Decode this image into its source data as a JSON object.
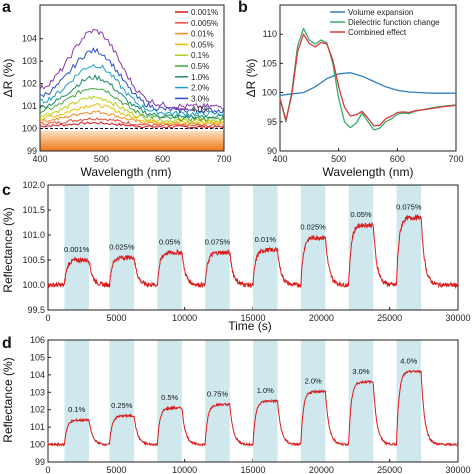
{
  "chart_data": [
    {
      "panel": "a",
      "type": "line",
      "xlabel": "Wavelength (nm)",
      "ylabel": "ΔR (%)",
      "xlim": [
        400,
        700
      ],
      "ylim": [
        99,
        105.5
      ],
      "xticks": [
        "400",
        "500",
        "600",
        "700"
      ],
      "yticks": [
        "99",
        "100",
        "101",
        "102",
        "103",
        "104"
      ],
      "legend_position": "top-right",
      "series": [
        {
          "name": "0.001%",
          "color": "#d81b23",
          "peak": 100.25,
          "tail": 100.05
        },
        {
          "name": "0.005%",
          "color": "#e8483a",
          "peak": 100.45,
          "tail": 100.1
        },
        {
          "name": "0.01%",
          "color": "#f08a24",
          "peak": 100.75,
          "tail": 100.15
        },
        {
          "name": "0.05%",
          "color": "#e6c000",
          "peak": 101.05,
          "tail": 100.2
        },
        {
          "name": "0.1%",
          "color": "#b5cf1a",
          "peak": 101.4,
          "tail": 100.25
        },
        {
          "name": "0.5%",
          "color": "#3ea63a",
          "peak": 101.85,
          "tail": 100.3
        },
        {
          "name": "1.0%",
          "color": "#1a8a6e",
          "peak": 102.3,
          "tail": 100.35
        },
        {
          "name": "2.0%",
          "color": "#1aa0c4",
          "peak": 102.85,
          "tail": 100.45
        },
        {
          "name": "3.0%",
          "color": "#2a50c8",
          "peak": 103.5,
          "tail": 100.55
        },
        {
          "name": "4.0%",
          "color": "#8a3aa8",
          "peak": 104.4,
          "tail": 100.65
        }
      ],
      "reference_line": 100
    },
    {
      "panel": "b",
      "type": "line",
      "xlabel": "Wavelength (nm)",
      "ylabel": "ΔR (%)",
      "xlim": [
        400,
        700
      ],
      "ylim": [
        90,
        115
      ],
      "xticks": [
        "400",
        "500",
        "600",
        "700"
      ],
      "yticks": [
        "90",
        "95",
        "100",
        "105",
        "110"
      ],
      "legend_position": "top-right",
      "series": [
        {
          "name": "Volume expansion",
          "color": "#2f7fc0",
          "x": [
            400,
            420,
            440,
            460,
            480,
            500,
            520,
            540,
            560,
            580,
            600,
            620,
            640,
            660,
            680,
            700
          ],
          "y": [
            99.5,
            99.8,
            100.0,
            101.0,
            102.4,
            103.2,
            103.4,
            102.8,
            101.9,
            101.0,
            100.4,
            100.1,
            100.0,
            99.9,
            99.9,
            99.9
          ]
        },
        {
          "name": "Dielectric function change",
          "color": "#3aaa6a",
          "x": [
            400,
            410,
            420,
            430,
            440,
            450,
            460,
            470,
            480,
            490,
            500,
            510,
            520,
            530,
            540,
            550,
            560,
            570,
            580,
            590,
            600,
            610,
            620,
            630,
            640,
            660,
            680,
            700
          ],
          "y": [
            99.0,
            95.0,
            100.0,
            108.0,
            111.0,
            109.0,
            108.3,
            109.0,
            108.5,
            105.0,
            99.0,
            95.0,
            94.0,
            94.8,
            96.5,
            95.0,
            93.6,
            93.9,
            95.0,
            95.5,
            96.3,
            96.5,
            96.4,
            96.8,
            97.0,
            97.4,
            97.7,
            97.9
          ]
        },
        {
          "name": "Combined effect",
          "color": "#d63a3a",
          "x": [
            400,
            410,
            420,
            430,
            440,
            450,
            460,
            470,
            480,
            490,
            500,
            510,
            520,
            530,
            540,
            550,
            560,
            570,
            580,
            590,
            600,
            610,
            620,
            630,
            640,
            660,
            680,
            700
          ],
          "y": [
            99.0,
            95.3,
            99.5,
            107.0,
            110.0,
            108.4,
            107.8,
            108.6,
            108.3,
            105.6,
            101.0,
            97.5,
            96.0,
            96.2,
            96.8,
            95.6,
            94.3,
            94.4,
            95.5,
            96.0,
            96.6,
            96.7,
            96.6,
            96.9,
            97.0,
            97.3,
            97.6,
            97.8
          ]
        }
      ]
    },
    {
      "panel": "c",
      "type": "line",
      "xlabel": "Time (s)",
      "ylabel": "Reflectance (%)",
      "xlim": [
        0,
        30000
      ],
      "ylim": [
        99.5,
        102.0
      ],
      "xticks": [
        "0",
        "5000",
        "10000",
        "15000",
        "20000",
        "25000",
        "30000"
      ],
      "yticks": [
        "99.5",
        "100.0",
        "100.5",
        "101.0",
        "101.5",
        "102.0"
      ],
      "baseline": 100.0,
      "series_color": "#d81b1b",
      "shade_color": "#cfe8ee",
      "pulses": [
        {
          "label": "0.001%",
          "start": 1200,
          "end": 3000,
          "level": 100.5
        },
        {
          "label": "0.025%",
          "start": 4500,
          "end": 6300,
          "level": 100.55
        },
        {
          "label": "0.05%",
          "start": 8000,
          "end": 9800,
          "level": 100.65
        },
        {
          "label": "0.075%",
          "start": 11500,
          "end": 13300,
          "level": 100.65
        },
        {
          "label": "0.01%",
          "start": 15000,
          "end": 16800,
          "level": 100.7
        },
        {
          "label": "0.025%",
          "start": 18500,
          "end": 20300,
          "level": 100.95
        },
        {
          "label": "0.05%",
          "start": 22000,
          "end": 23800,
          "level": 101.2
        },
        {
          "label": "0.075%",
          "start": 25500,
          "end": 27300,
          "level": 101.35
        }
      ]
    },
    {
      "panel": "d",
      "type": "line",
      "xlabel": "",
      "ylabel": "Reflectance (%)",
      "xlim": [
        0,
        30000
      ],
      "ylim": [
        99,
        106
      ],
      "xticks": [
        "0",
        "5000",
        "10000",
        "15000",
        "20000",
        "25000",
        "30000"
      ],
      "yticks": [
        "99",
        "100",
        "101",
        "102",
        "103",
        "104",
        "105",
        "106"
      ],
      "baseline": 100.0,
      "series_color": "#d81b1b",
      "shade_color": "#cfe8ee",
      "pulses": [
        {
          "label": "0.1%",
          "start": 1200,
          "end": 3000,
          "level": 101.4
        },
        {
          "label": "0.25%",
          "start": 4500,
          "end": 6300,
          "level": 101.65
        },
        {
          "label": "0.5%",
          "start": 8000,
          "end": 9800,
          "level": 102.1
        },
        {
          "label": "0.75%",
          "start": 11500,
          "end": 13300,
          "level": 102.3
        },
        {
          "label": "1.0%",
          "start": 15000,
          "end": 16800,
          "level": 102.5
        },
        {
          "label": "2.0%",
          "start": 18500,
          "end": 20300,
          "level": 103.05
        },
        {
          "label": "3.0%",
          "start": 22000,
          "end": 23800,
          "level": 103.6
        },
        {
          "label": "4.0%",
          "start": 25500,
          "end": 27300,
          "level": 104.2
        }
      ]
    }
  ]
}
